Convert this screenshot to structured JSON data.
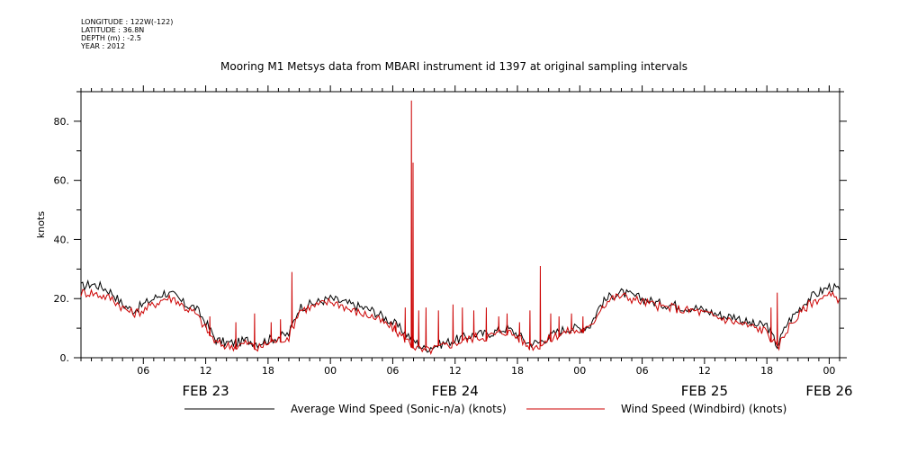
{
  "meta": {
    "longitude": "LONGITUDE : 122W(-122)",
    "latitude": "LATITUDE : 36.8N",
    "depth": "DEPTH (m) : -2.5",
    "year": "YEAR : 2012"
  },
  "chart_data": {
    "type": "line",
    "title": "Mooring M1 Metsys data from MBARI instrument id 1397 at original sampling intervals",
    "xlabel": "",
    "ylabel": "knots",
    "ylim": [
      0,
      90
    ],
    "yticks": [
      0,
      20,
      40,
      60,
      80
    ],
    "ytick_labels": [
      "0.",
      "20.",
      "40.",
      "60.",
      "80."
    ],
    "x_range_hours": [
      0,
      73
    ],
    "xticks": [
      {
        "hour": 6,
        "label": "06"
      },
      {
        "hour": 12,
        "label": "12"
      },
      {
        "hour": 18,
        "label": "18"
      },
      {
        "hour": 24,
        "label": "00"
      },
      {
        "hour": 30,
        "label": "06"
      },
      {
        "hour": 36,
        "label": "12"
      },
      {
        "hour": 42,
        "label": "18"
      },
      {
        "hour": 48,
        "label": "00"
      },
      {
        "hour": 54,
        "label": "06"
      },
      {
        "hour": 60,
        "label": "12"
      },
      {
        "hour": 66,
        "label": "18"
      },
      {
        "hour": 72,
        "label": "00"
      }
    ],
    "date_labels": [
      {
        "hour": 12,
        "label": "FEB 23"
      },
      {
        "hour": 36,
        "label": "FEB 24"
      },
      {
        "hour": 60,
        "label": "FEB 25"
      },
      {
        "hour": 72,
        "label": "FEB 26"
      }
    ],
    "grid": false,
    "legend_position": "bottom",
    "series": [
      {
        "name": "Average Wind Speed (Sonic-n/a) (knots)",
        "color": "#000000",
        "x_hours": [
          0,
          1,
          2,
          3,
          4,
          5,
          6,
          7,
          8,
          9,
          10,
          11,
          12,
          13,
          14,
          15,
          16,
          17,
          18,
          19,
          20,
          21,
          22,
          23,
          24,
          25,
          26,
          27,
          28,
          29,
          30,
          31,
          32,
          33,
          34,
          35,
          36,
          37,
          38,
          39,
          40,
          41,
          42,
          43,
          44,
          45,
          46,
          47,
          48,
          49,
          50,
          51,
          52,
          53,
          54,
          55,
          56,
          57,
          58,
          59,
          60,
          61,
          62,
          63,
          64,
          65,
          66,
          67,
          68,
          69,
          70,
          71,
          72,
          73
        ],
        "values": [
          24,
          25,
          24,
          22,
          18,
          16,
          18,
          20,
          22,
          21,
          18,
          17,
          12,
          6,
          5,
          5,
          6,
          5,
          6,
          7,
          8,
          17,
          18,
          19,
          20,
          19,
          18,
          17,
          16,
          14,
          12,
          9,
          6,
          3,
          4,
          5,
          6,
          7,
          8,
          8,
          9,
          10,
          8,
          5,
          5,
          7,
          9,
          10,
          10,
          11,
          18,
          21,
          22,
          21,
          20,
          19,
          18,
          18,
          17,
          17,
          16,
          15,
          14,
          14,
          12,
          11,
          11,
          4,
          12,
          16,
          20,
          22,
          24,
          23
        ]
      },
      {
        "name": "Wind Speed (Windbird) (knots)",
        "color": "#cc0000",
        "x_hours": [
          0,
          1,
          2,
          3,
          4,
          5,
          6,
          7,
          8,
          9,
          10,
          11,
          12,
          13,
          14,
          15,
          16,
          17,
          18,
          19,
          20,
          21,
          22,
          23,
          24,
          25,
          26,
          27,
          28,
          29,
          30,
          31,
          32,
          33,
          34,
          35,
          36,
          37,
          38,
          39,
          40,
          41,
          42,
          43,
          44,
          45,
          46,
          47,
          48,
          49,
          50,
          51,
          52,
          53,
          54,
          55,
          56,
          57,
          58,
          59,
          60,
          61,
          62,
          63,
          64,
          65,
          66,
          67,
          68,
          69,
          70,
          71,
          72,
          73
        ],
        "values": [
          22,
          22,
          21,
          20,
          17,
          15,
          16,
          18,
          20,
          20,
          17,
          15,
          10,
          5,
          4,
          4,
          5,
          3,
          5,
          6,
          7,
          16,
          17,
          18,
          19,
          18,
          16,
          15,
          14,
          12,
          10,
          7,
          4,
          2,
          3,
          4,
          5,
          6,
          7,
          7,
          8,
          9,
          7,
          4,
          4,
          6,
          8,
          9,
          9,
          10,
          17,
          20,
          21,
          20,
          19,
          18,
          17,
          17,
          16,
          16,
          15,
          14,
          13,
          12,
          11,
          10,
          9,
          3,
          10,
          14,
          18,
          20,
          21,
          20
        ],
        "spikes": [
          {
            "hour": 12.4,
            "value": 14
          },
          {
            "hour": 14.9,
            "value": 12
          },
          {
            "hour": 16.7,
            "value": 15
          },
          {
            "hour": 18.3,
            "value": 12
          },
          {
            "hour": 19.2,
            "value": 13
          },
          {
            "hour": 20.3,
            "value": 29
          },
          {
            "hour": 30.3,
            "value": 12
          },
          {
            "hour": 31.2,
            "value": 17
          },
          {
            "hour": 31.8,
            "value": 87
          },
          {
            "hour": 31.95,
            "value": 66
          },
          {
            "hour": 32.5,
            "value": 16
          },
          {
            "hour": 33.2,
            "value": 17
          },
          {
            "hour": 34.4,
            "value": 16
          },
          {
            "hour": 35.8,
            "value": 18
          },
          {
            "hour": 36.7,
            "value": 17
          },
          {
            "hour": 37.8,
            "value": 16
          },
          {
            "hour": 39.0,
            "value": 17
          },
          {
            "hour": 40.2,
            "value": 14
          },
          {
            "hour": 41.0,
            "value": 15
          },
          {
            "hour": 42.2,
            "value": 12
          },
          {
            "hour": 43.2,
            "value": 16
          },
          {
            "hour": 44.2,
            "value": 31
          },
          {
            "hour": 45.2,
            "value": 15
          },
          {
            "hour": 46.0,
            "value": 14
          },
          {
            "hour": 47.2,
            "value": 15
          },
          {
            "hour": 48.3,
            "value": 14
          },
          {
            "hour": 66.4,
            "value": 17
          },
          {
            "hour": 67.0,
            "value": 22
          }
        ]
      }
    ]
  }
}
